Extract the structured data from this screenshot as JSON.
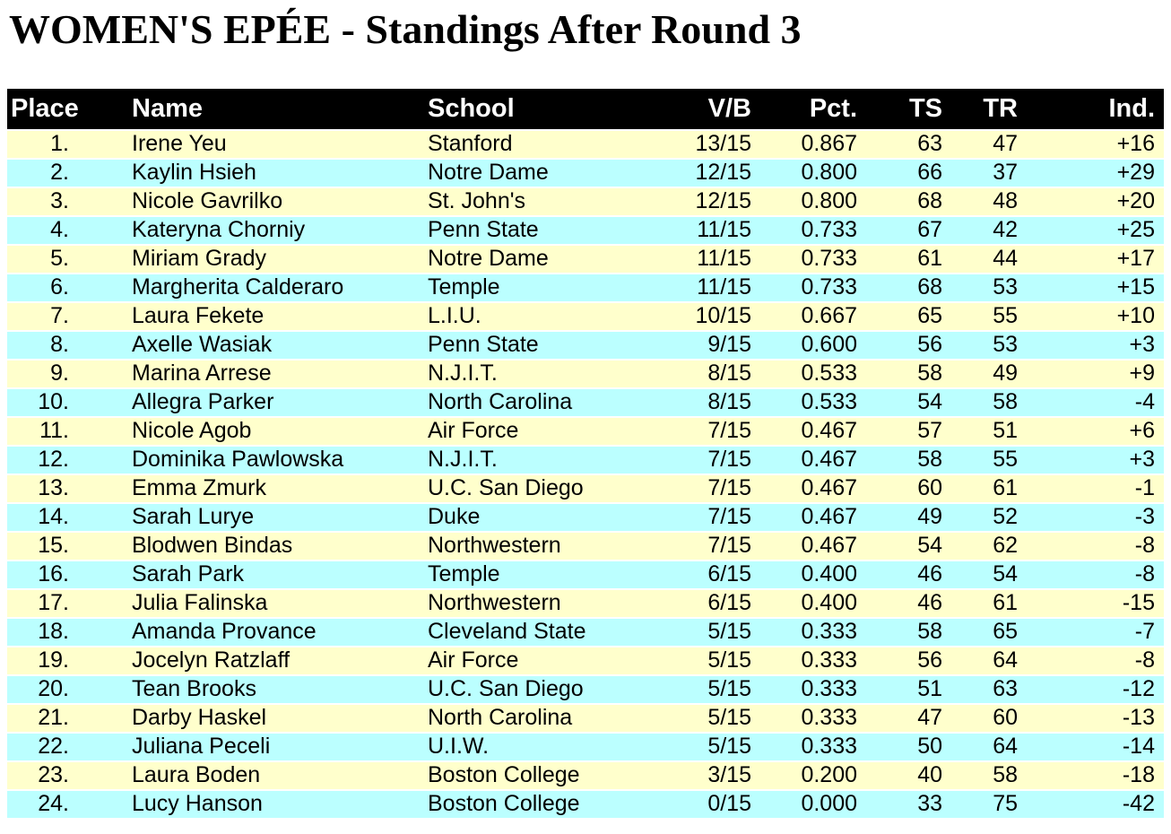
{
  "title": "WOMEN'S EPÉE - Standings After Round 3",
  "colors": {
    "header_bg": "#000000",
    "header_text": "#FFFFFF",
    "row_yellow": "#FFFFCC",
    "row_cyan": "#BBFFFF"
  },
  "table": {
    "columns": [
      "Place",
      "Name",
      "School",
      "V/B",
      "Pct.",
      "TS",
      "TR",
      "Ind."
    ],
    "column_keys": [
      "place",
      "name",
      "school",
      "vb",
      "pct",
      "ts",
      "tr",
      "ind"
    ],
    "rows": [
      [
        "1.",
        "Irene Yeu",
        "Stanford",
        "13/15",
        "0.867",
        "63",
        "47",
        "+16"
      ],
      [
        "2.",
        "Kaylin Hsieh",
        "Notre Dame",
        "12/15",
        "0.800",
        "66",
        "37",
        "+29"
      ],
      [
        "3.",
        "Nicole Gavrilko",
        "St. John's",
        "12/15",
        "0.800",
        "68",
        "48",
        "+20"
      ],
      [
        "4.",
        "Kateryna Chorniy",
        "Penn State",
        "11/15",
        "0.733",
        "67",
        "42",
        "+25"
      ],
      [
        "5.",
        "Miriam Grady",
        "Notre Dame",
        "11/15",
        "0.733",
        "61",
        "44",
        "+17"
      ],
      [
        "6.",
        "Margherita Calderaro",
        "Temple",
        "11/15",
        "0.733",
        "68",
        "53",
        "+15"
      ],
      [
        "7.",
        "Laura Fekete",
        "L.I.U.",
        "10/15",
        "0.667",
        "65",
        "55",
        "+10"
      ],
      [
        "8.",
        "Axelle Wasiak",
        "Penn State",
        "9/15",
        "0.600",
        "56",
        "53",
        "+3"
      ],
      [
        "9.",
        "Marina Arrese",
        "N.J.I.T.",
        "8/15",
        "0.533",
        "58",
        "49",
        "+9"
      ],
      [
        "10.",
        "Allegra Parker",
        "North Carolina",
        "8/15",
        "0.533",
        "54",
        "58",
        "-4"
      ],
      [
        "11.",
        "Nicole Agob",
        "Air Force",
        "7/15",
        "0.467",
        "57",
        "51",
        "+6"
      ],
      [
        "12.",
        "Dominika Pawlowska",
        "N.J.I.T.",
        "7/15",
        "0.467",
        "58",
        "55",
        "+3"
      ],
      [
        "13.",
        "Emma Zmurk",
        "U.C. San Diego",
        "7/15",
        "0.467",
        "60",
        "61",
        "-1"
      ],
      [
        "14.",
        "Sarah Lurye",
        "Duke",
        "7/15",
        "0.467",
        "49",
        "52",
        "-3"
      ],
      [
        "15.",
        "Blodwen Bindas",
        "Northwestern",
        "7/15",
        "0.467",
        "54",
        "62",
        "-8"
      ],
      [
        "16.",
        "Sarah Park",
        "Temple",
        "6/15",
        "0.400",
        "46",
        "54",
        "-8"
      ],
      [
        "17.",
        "Julia Falinska",
        "Northwestern",
        "6/15",
        "0.400",
        "46",
        "61",
        "-15"
      ],
      [
        "18.",
        "Amanda Provance",
        "Cleveland State",
        "5/15",
        "0.333",
        "58",
        "65",
        "-7"
      ],
      [
        "19.",
        "Jocelyn Ratzlaff",
        "Air Force",
        "5/15",
        "0.333",
        "56",
        "64",
        "-8"
      ],
      [
        "20.",
        "Tean Brooks",
        "U.C. San Diego",
        "5/15",
        "0.333",
        "51",
        "63",
        "-12"
      ],
      [
        "21.",
        "Darby Haskel",
        "North Carolina",
        "5/15",
        "0.333",
        "47",
        "60",
        "-13"
      ],
      [
        "22.",
        "Juliana Peceli",
        "U.I.W.",
        "5/15",
        "0.333",
        "50",
        "64",
        "-14"
      ],
      [
        "23.",
        "Laura Boden",
        "Boston College",
        "3/15",
        "0.200",
        "40",
        "58",
        "-18"
      ],
      [
        "24.",
        "Lucy Hanson",
        "Boston College",
        "0/15",
        "0.000",
        "33",
        "75",
        "-42"
      ]
    ]
  }
}
